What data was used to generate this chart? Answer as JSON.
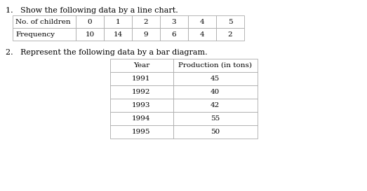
{
  "question1_text": "1.   Show the following data by a line chart.",
  "table1_headers": [
    "No. of children",
    "0",
    "1",
    "2",
    "3",
    "4",
    "5"
  ],
  "table1_row2": [
    "Frequency",
    "10",
    "14",
    "9",
    "6",
    "4",
    "2"
  ],
  "question2_text": "2.   Represent the following data by a bar diagram.",
  "table2_col1_header": "Year",
  "table2_col2_header": "Production (in tons)",
  "table2_years": [
    "1991",
    "1992",
    "1993",
    "1994",
    "1995"
  ],
  "table2_production": [
    "45",
    "40",
    "42",
    "55",
    "50"
  ],
  "bg_color": "#ffffff",
  "text_color": "#000000",
  "q_fontsize": 8.0,
  "table_fontsize": 7.5,
  "line_color": "#aaaaaa"
}
